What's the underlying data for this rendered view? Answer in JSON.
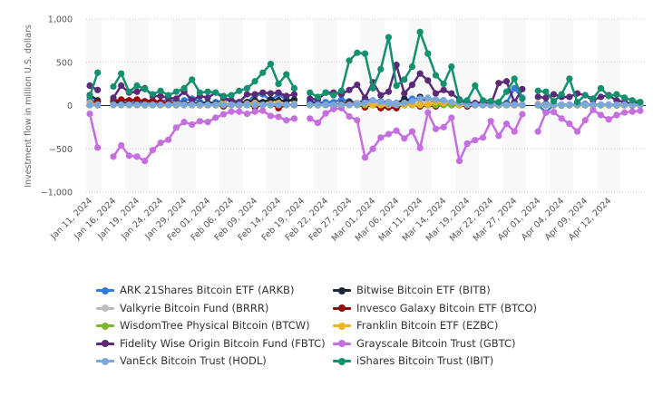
{
  "chart_data": {
    "type": "line",
    "title": "",
    "xlabel": "",
    "ylabel": "Investment flow in million U.S. dollars",
    "ylim": [
      -1000,
      1000
    ],
    "yticks": [
      1000,
      500,
      0,
      -500,
      -1000
    ],
    "ytick_labels": [
      "1,000",
      "500",
      "0",
      "−500",
      "−1,000"
    ],
    "grid": true,
    "legend_position": "bottom",
    "x": [
      "Jan 11, 2024",
      "Jan 12, 2024",
      "Jan 15, 2024",
      "Jan 16, 2024",
      "Jan 17, 2024",
      "Jan 18, 2024",
      "Jan 19, 2024",
      "Jan 22, 2024",
      "Jan 23, 2024",
      "Jan 24, 2024",
      "Jan 25, 2024",
      "Jan 26, 2024",
      "Jan 29, 2024",
      "Jan 30, 2024",
      "Jan 31, 2024",
      "Feb 01, 2024",
      "Feb 02, 2024",
      "Feb 05, 2024",
      "Feb 06, 2024",
      "Feb 07, 2024",
      "Feb 08, 2024",
      "Feb 09, 2024",
      "Feb 12, 2024",
      "Feb 13, 2024",
      "Feb 14, 2024",
      "Feb 15, 2024",
      "Feb 16, 2024",
      "Feb 19, 2024",
      "Feb 20, 2024",
      "Feb 21, 2024",
      "Feb 22, 2024",
      "Feb 23, 2024",
      "Feb 26, 2024",
      "Feb 27, 2024",
      "Feb 28, 2024",
      "Feb 29, 2024",
      "Mar 01, 2024",
      "Mar 04, 2024",
      "Mar 05, 2024",
      "Mar 06, 2024",
      "Mar 07, 2024",
      "Mar 08, 2024",
      "Mar 11, 2024",
      "Mar 12, 2024",
      "Mar 13, 2024",
      "Mar 14, 2024",
      "Mar 15, 2024",
      "Mar 18, 2024",
      "Mar 19, 2024",
      "Mar 20, 2024",
      "Mar 21, 2024",
      "Mar 22, 2024",
      "Mar 25, 2024",
      "Mar 26, 2024",
      "Mar 27, 2024",
      "Mar 28, 2024",
      "Mar 29, 2024",
      "Apr 01, 2024",
      "Apr 02, 2024",
      "Apr 03, 2024",
      "Apr 04, 2024",
      "Apr 05, 2024",
      "Apr 08, 2024",
      "Apr 09, 2024",
      "Apr 10, 2024",
      "Apr 11, 2024",
      "Apr 12, 2024",
      "Apr 15, 2024",
      "Apr 16, 2024",
      "Apr 17, 2024",
      "Apr 18, 2024"
    ],
    "xtick_labels": [
      "Jan 11, 2024",
      "Jan 16, 2024",
      "Jan 19, 2024",
      "Jan 24, 2024",
      "Jan 29, 2024",
      "Feb 01, 2024",
      "Feb 06, 2024",
      "Feb 09, 2024",
      "Feb 14, 2024",
      "Feb 19, 2024",
      "Feb 22, 2024",
      "Feb 27, 2024",
      "Mar 01, 2024",
      "Mar 06, 2024",
      "Mar 11, 2024",
      "Mar 14, 2024",
      "Mar 19, 2024",
      "Mar 22, 2024",
      "Mar 27, 2024",
      "Apr 01, 2024",
      "Apr 04, 2024",
      "Apr 09, 2024",
      "Apr 12, 2024"
    ],
    "series": [
      {
        "name": "ARK 21Shares Bitcoin ETF (ARKB)",
        "color": "#2f7be0",
        "values": [
          65,
          40,
          null,
          60,
          50,
          60,
          45,
          40,
          50,
          40,
          70,
          40,
          60,
          80,
          45,
          30,
          40,
          60,
          60,
          40,
          40,
          120,
          130,
          60,
          130,
          70,
          60,
          null,
          60,
          30,
          40,
          40,
          70,
          50,
          30,
          70,
          60,
          50,
          40,
          30,
          60,
          80,
          40,
          50,
          40,
          60,
          30,
          40,
          30,
          20,
          10,
          20,
          20,
          30,
          200,
          90,
          null,
          10,
          -80,
          10,
          0,
          10,
          20,
          20,
          10,
          10,
          10,
          0,
          10,
          10,
          10
        ]
      },
      {
        "name": "Bitwise Bitcoin ETF (BITB)",
        "color": "#17263c",
        "values": [
          120,
          60,
          null,
          40,
          30,
          20,
          20,
          10,
          20,
          10,
          20,
          10,
          20,
          30,
          20,
          30,
          20,
          20,
          10,
          30,
          40,
          60,
          40,
          70,
          60,
          50,
          70,
          null,
          30,
          20,
          10,
          10,
          20,
          40,
          30,
          30,
          40,
          20,
          30,
          20,
          80,
          40,
          100,
          20,
          10,
          20,
          10,
          10,
          10,
          20,
          10,
          10,
          10,
          20,
          20,
          10,
          null,
          10,
          20,
          10,
          10,
          10,
          10,
          10,
          10,
          10,
          10,
          10,
          10,
          0,
          10
        ]
      },
      {
        "name": "Valkyrie Bitcoin Fund (BRRR)",
        "color": "#bdbdbd",
        "values": [
          10,
          5,
          null,
          10,
          5,
          10,
          5,
          5,
          10,
          5,
          5,
          10,
          5,
          10,
          5,
          5,
          10,
          5,
          5,
          10,
          10,
          10,
          5,
          10,
          5,
          10,
          5,
          null,
          10,
          5,
          10,
          5,
          10,
          20,
          30,
          20,
          30,
          20,
          30,
          20,
          30,
          40,
          50,
          40,
          30,
          20,
          30,
          20,
          10,
          10,
          10,
          20,
          10,
          10,
          10,
          10,
          null,
          5,
          5,
          10,
          5,
          5,
          5,
          10,
          5,
          5,
          5,
          5,
          5,
          5,
          5
        ]
      },
      {
        "name": "Invesco Galaxy Bitcoin ETF (BTCO)",
        "color": "#a00000",
        "values": [
          20,
          40,
          null,
          50,
          70,
          60,
          70,
          50,
          60,
          40,
          30,
          20,
          10,
          20,
          10,
          5,
          10,
          -10,
          10,
          5,
          20,
          -20,
          10,
          20,
          -30,
          10,
          5,
          null,
          10,
          5,
          10,
          -5,
          10,
          20,
          10,
          -20,
          10,
          -30,
          -20,
          -30,
          20,
          10,
          -10,
          5,
          -10,
          10,
          5,
          5,
          -10,
          5,
          5,
          5,
          5,
          5,
          5,
          5,
          null,
          5,
          5,
          5,
          5,
          5,
          5,
          5,
          5,
          5,
          5,
          5,
          5,
          5,
          5
        ]
      },
      {
        "name": "WisdomTree Physical Bitcoin (BTCW)",
        "color": "#7ab829",
        "values": [
          5,
          3,
          null,
          5,
          5,
          5,
          5,
          3,
          5,
          3,
          5,
          3,
          5,
          5,
          3,
          5,
          3,
          5,
          5,
          5,
          5,
          5,
          5,
          5,
          5,
          5,
          5,
          null,
          5,
          3,
          5,
          3,
          5,
          5,
          5,
          5,
          5,
          5,
          5,
          5,
          5,
          5,
          5,
          5,
          5,
          5,
          5,
          5,
          5,
          5,
          5,
          5,
          3,
          5,
          5,
          5,
          null,
          3,
          3,
          3,
          3,
          3,
          3,
          3,
          3,
          3,
          3,
          3,
          3,
          3,
          3
        ]
      },
      {
        "name": "Franklin Bitcoin ETF (EZBC)",
        "color": "#f0b323",
        "values": [
          30,
          10,
          null,
          10,
          10,
          10,
          5,
          10,
          10,
          5,
          10,
          20,
          10,
          10,
          10,
          10,
          10,
          30,
          10,
          10,
          20,
          30,
          10,
          20,
          30,
          10,
          20,
          null,
          10,
          10,
          10,
          5,
          10,
          10,
          10,
          20,
          10,
          10,
          10,
          10,
          10,
          10,
          10,
          10,
          40,
          30,
          40,
          10,
          10,
          20,
          10,
          10,
          10,
          10,
          20,
          10,
          null,
          20,
          10,
          10,
          10,
          10,
          10,
          10,
          10,
          10,
          10,
          10,
          10,
          10,
          10
        ]
      },
      {
        "name": "Fidelity Wise Origin Bitcoin Fund (FBTC)",
        "color": "#5a2a78",
        "values": [
          230,
          180,
          null,
          90,
          230,
          150,
          160,
          200,
          110,
          110,
          90,
          80,
          160,
          60,
          110,
          90,
          150,
          90,
          60,
          40,
          130,
          130,
          150,
          140,
          150,
          110,
          130,
          null,
          80,
          70,
          150,
          150,
          130,
          180,
          240,
          90,
          270,
          120,
          160,
          470,
          140,
          240,
          370,
          290,
          140,
          180,
          140,
          70,
          30,
          30,
          40,
          10,
          260,
          280,
          40,
          190,
          null,
          100,
          90,
          130,
          100,
          100,
          140,
          120,
          60,
          100,
          120,
          60,
          40,
          20,
          40
        ]
      },
      {
        "name": "Grayscale Bitcoin Trust (GBTC)",
        "color": "#c56ee0",
        "values": [
          -95,
          -485,
          null,
          -590,
          -460,
          -580,
          -590,
          -640,
          -515,
          -430,
          -395,
          -255,
          -190,
          -220,
          -180,
          -190,
          -140,
          -100,
          -70,
          -70,
          -95,
          -70,
          -60,
          -120,
          -130,
          -170,
          -150,
          null,
          -150,
          -200,
          -90,
          -40,
          -30,
          -125,
          -170,
          -600,
          -500,
          -370,
          -330,
          -290,
          -380,
          -300,
          -490,
          -80,
          -270,
          -250,
          -140,
          -640,
          -440,
          -400,
          -370,
          -180,
          -350,
          -210,
          -300,
          -100,
          null,
          -300,
          -80,
          -75,
          -150,
          -210,
          -300,
          -170,
          -50,
          -110,
          -160,
          -110,
          -80,
          -70,
          -60
        ]
      },
      {
        "name": "VanEck Bitcoin Trust (HODL)",
        "color": "#7ba7e0",
        "values": [
          10,
          10,
          null,
          10,
          10,
          10,
          10,
          10,
          10,
          10,
          10,
          10,
          10,
          10,
          10,
          10,
          10,
          10,
          10,
          10,
          10,
          10,
          10,
          10,
          10,
          10,
          10,
          null,
          10,
          10,
          10,
          10,
          10,
          10,
          10,
          30,
          60,
          40,
          20,
          10,
          30,
          50,
          80,
          90,
          70,
          60,
          40,
          30,
          10,
          10,
          10,
          10,
          10,
          10,
          10,
          10,
          null,
          10,
          10,
          10,
          10,
          10,
          10,
          10,
          10,
          10,
          10,
          10,
          10,
          10,
          10
        ]
      },
      {
        "name": "iShares Bitcoin Trust (IBIT)",
        "color": "#13906e",
        "values": [
          110,
          380,
          null,
          220,
          370,
          160,
          230,
          190,
          130,
          170,
          120,
          160,
          200,
          300,
          150,
          160,
          150,
          110,
          120,
          170,
          200,
          280,
          380,
          480,
          250,
          360,
          200,
          null,
          150,
          100,
          150,
          120,
          170,
          520,
          610,
          600,
          200,
          420,
          790,
          230,
          300,
          450,
          850,
          600,
          350,
          250,
          450,
          60,
          60,
          230,
          60,
          50,
          40,
          160,
          310,
          80,
          null,
          170,
          160,
          50,
          130,
          310,
          40,
          120,
          80,
          200,
          110,
          130,
          90,
          60,
          40
        ]
      }
    ]
  }
}
